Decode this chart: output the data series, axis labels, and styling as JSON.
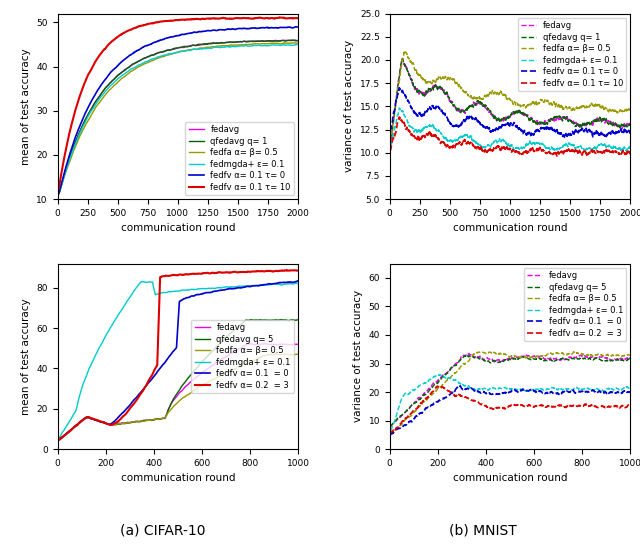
{
  "fig_width": 6.4,
  "fig_height": 5.44,
  "dpi": 100,
  "caption_a": "(a) CIFAR-10",
  "caption_b": "(b) MNIST",
  "cifar_mean": {
    "xlabel": "communication round",
    "ylabel": "mean of test accuracy",
    "xlim": [
      0,
      2000
    ],
    "ylim": [
      10,
      52
    ],
    "yticks": [
      10,
      20,
      30,
      40,
      50
    ],
    "xticks": [
      0,
      250,
      500,
      750,
      1000,
      1250,
      1500,
      1750,
      2000
    ],
    "legend_labels": [
      "fedavg",
      "qfedavg q= 1",
      "fedfa α= β= 0.5",
      "fedmgda+ ε= 0.1",
      "fedfv α= 0.1 τ= 0",
      "fedfv α= 0.1 τ= 10"
    ],
    "line_colors": [
      "#ee00ee",
      "#006400",
      "#999900",
      "#00cccc",
      "#0000cc",
      "#dd0000"
    ],
    "line_styles": [
      "-",
      "-",
      "-",
      "-",
      "-",
      "-"
    ],
    "line_widths": [
      1.0,
      1.0,
      1.0,
      1.0,
      1.2,
      1.5
    ]
  },
  "cifar_var": {
    "xlabel": "communication round",
    "ylabel": "variance of test accuracy",
    "xlim": [
      0,
      2000
    ],
    "ylim": [
      5.0,
      25.0
    ],
    "yticks": [
      5.0,
      7.5,
      10.0,
      12.5,
      15.0,
      17.5,
      20.0,
      22.5,
      25.0
    ],
    "xticks": [
      0,
      250,
      500,
      750,
      1000,
      1250,
      1500,
      1750,
      2000
    ],
    "legend_labels": [
      "fedavg",
      "qfedavg q= 1",
      "fedfa α= β= 0.5",
      "fedmgda+ ε= 0.1",
      "fedfv α= 0.1 τ= 0",
      "fedfv α= 0.1 τ= 10"
    ],
    "line_colors": [
      "#ee00ee",
      "#006400",
      "#999900",
      "#00cccc",
      "#0000cc",
      "#dd0000"
    ],
    "line_styles": [
      "--",
      "--",
      "--",
      "--",
      "--",
      "--"
    ],
    "line_widths": [
      1.0,
      1.0,
      1.0,
      1.0,
      1.2,
      1.2
    ]
  },
  "mnist_mean": {
    "xlabel": "communication round",
    "ylabel": "mean of test accuracy",
    "xlim": [
      0,
      1000
    ],
    "ylim": [
      0,
      92
    ],
    "yticks": [
      0,
      20,
      40,
      60,
      80
    ],
    "xticks": [
      0,
      200,
      400,
      600,
      800,
      1000
    ],
    "legend_labels": [
      "fedavg",
      "qfedavg q= 5",
      "fedfa α= β= 0.5",
      "fedmgda+ ε= 0.1",
      "fedfv α= 0.1  = 0",
      "fedfv α= 0.2  = 3"
    ],
    "line_colors": [
      "#ee00ee",
      "#006400",
      "#999900",
      "#00cccc",
      "#0000cc",
      "#dd0000"
    ],
    "line_styles": [
      "-",
      "-",
      "-",
      "-",
      "-",
      "-"
    ],
    "line_widths": [
      1.0,
      1.0,
      1.0,
      1.0,
      1.2,
      1.5
    ]
  },
  "mnist_var": {
    "xlabel": "communication round",
    "ylabel": "variance of test accuracy",
    "xlim": [
      0,
      1000
    ],
    "ylim": [
      0,
      65
    ],
    "yticks": [
      0,
      10,
      20,
      30,
      40,
      50,
      60
    ],
    "xticks": [
      0,
      200,
      400,
      600,
      800,
      1000
    ],
    "legend_labels": [
      "fedavg",
      "qfedavg q= 5",
      "fedfa α= β= 0.5",
      "fedmgda+ ε= 0.1",
      "fedfv α= 0.1  = 0",
      "fedfv α= 0.2  = 3"
    ],
    "line_colors": [
      "#ee00ee",
      "#006400",
      "#999900",
      "#00cccc",
      "#0000cc",
      "#dd0000"
    ],
    "line_styles": [
      "--",
      "--",
      "--",
      "--",
      "--",
      "--"
    ],
    "line_widths": [
      1.0,
      1.0,
      1.0,
      1.0,
      1.2,
      1.2
    ]
  }
}
